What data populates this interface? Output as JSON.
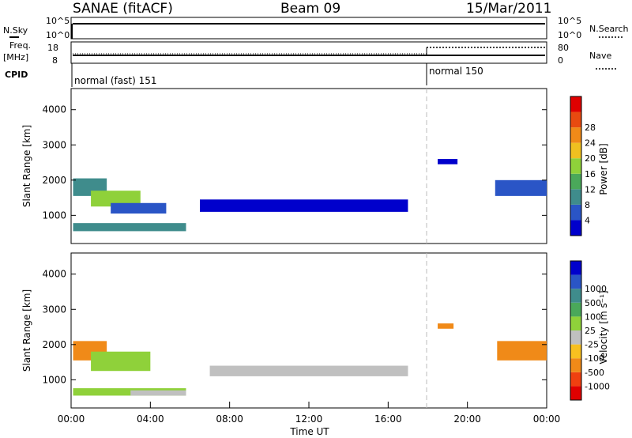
{
  "header": {
    "station": "SANAE (fitACF)",
    "beam": "Beam 09",
    "date": "15/Mar/2011"
  },
  "panels": {
    "nsky_label": "N.Sky",
    "nsky_ticks": [
      "10^5",
      "10^0"
    ],
    "nsearch_label": "N.Search",
    "nsearch_ticks": [
      "10^5",
      "10^0"
    ],
    "freq_label_1": "Freq.",
    "freq_label_2": "[MHz]",
    "freq_ticks": [
      "18",
      "8"
    ],
    "nave_label": "Nave",
    "nave_ticks": [
      "80",
      "0"
    ],
    "cpid_label": "CPID",
    "cpid_segments": [
      {
        "label": "normal (fast) 151",
        "start_hour": 0,
        "end_hour": 18
      },
      {
        "label": "normal 150",
        "start_hour": 18,
        "end_hour": 24
      }
    ]
  },
  "colors": {
    "power_scale": [
      "#0000cc",
      "#2a55c6",
      "#3f8c8c",
      "#4aa85a",
      "#8fd13a",
      "#f0c020",
      "#f08a18",
      "#e84a10",
      "#e00000"
    ],
    "velocity_scale": [
      "#e00000",
      "#f04010",
      "#f08a18",
      "#f8c020",
      "#c0c0c0",
      "#8fd13a",
      "#4aa85a",
      "#3f8c8c",
      "#2a55c6",
      "#0000cc"
    ]
  },
  "chart_data": [
    {
      "type": "heatmap",
      "name": "power",
      "ylabel": "Slant Range [km]",
      "xlabel": "",
      "y_ticks": [
        "1000",
        "2000",
        "3000",
        "4000"
      ],
      "ylim": [
        200,
        4600
      ],
      "xlim": [
        0,
        24
      ],
      "colorbar_label": "Power [dB]",
      "colorbar_ticks": [
        "4",
        "8",
        "12",
        "16",
        "20",
        "24",
        "28"
      ],
      "regions": [
        {
          "t0": 0.1,
          "t1": 5.8,
          "r0": 550,
          "r1": 780,
          "level": 2
        },
        {
          "t0": 0.1,
          "t1": 1.8,
          "r0": 1550,
          "r1": 2050,
          "level": 2
        },
        {
          "t0": 1.0,
          "t1": 3.5,
          "r0": 1250,
          "r1": 1700,
          "level": 4
        },
        {
          "t0": 2.0,
          "t1": 4.8,
          "r0": 1050,
          "r1": 1350,
          "level": 1
        },
        {
          "t0": 6.5,
          "t1": 17.0,
          "r0": 1100,
          "r1": 1450,
          "level": 0
        },
        {
          "t0": 21.4,
          "t1": 24.0,
          "r0": 1550,
          "r1": 2000,
          "level": 1
        },
        {
          "t0": 18.5,
          "t1": 19.5,
          "r0": 2450,
          "r1": 2600,
          "level": 0
        }
      ]
    },
    {
      "type": "heatmap",
      "name": "velocity",
      "ylabel": "Slant Range [km]",
      "xlabel": "Time UT",
      "y_ticks": [
        "1000",
        "2000",
        "3000",
        "4000"
      ],
      "ylim": [
        200,
        4600
      ],
      "xlim": [
        0,
        24
      ],
      "x_ticks": [
        "00:00",
        "04:00",
        "08:00",
        "12:00",
        "16:00",
        "20:00",
        "00:00"
      ],
      "colorbar_label": "Velocity [m s⁻¹]",
      "colorbar_ticks": [
        "-1000",
        "-500",
        "-100",
        "-25",
        "25",
        "100",
        "500",
        "1000"
      ],
      "regions": [
        {
          "t0": 0.1,
          "t1": 5.8,
          "r0": 550,
          "r1": 760,
          "level": 5
        },
        {
          "t0": 3.0,
          "t1": 5.8,
          "r0": 550,
          "r1": 700,
          "level": 4
        },
        {
          "t0": 0.1,
          "t1": 1.8,
          "r0": 1550,
          "r1": 2100,
          "level": 2
        },
        {
          "t0": 1.0,
          "t1": 4.0,
          "r0": 1250,
          "r1": 1800,
          "level": 5
        },
        {
          "t0": 7.0,
          "t1": 17.0,
          "r0": 1100,
          "r1": 1400,
          "level": 4
        },
        {
          "t0": 21.5,
          "t1": 24.0,
          "r0": 1550,
          "r1": 2100,
          "level": 2
        },
        {
          "t0": 18.5,
          "t1": 19.3,
          "r0": 2450,
          "r1": 2600,
          "level": 2
        }
      ]
    }
  ]
}
